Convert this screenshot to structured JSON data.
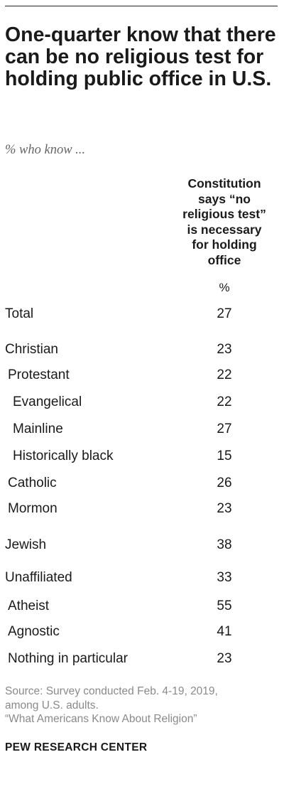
{
  "title": "One-quarter know that there can be no religious test for holding public office in U.S.",
  "subtitle": "% who know ...",
  "column_header": "Constitution\nsays “no\nreligious test”\nis necessary\nfor holding\noffice",
  "unit_label": "%",
  "source_lines": [
    "Source: Survey conducted Feb. 4-19, 2019,",
    "among U.S. adults.",
    "“What Americans Know About Religion”"
  ],
  "footer": "PEW RESEARCH CENTER",
  "chart_data": {
    "type": "table",
    "title": "One-quarter know that there can be no religious test for holding public office in U.S.",
    "subtitle": "% who know ...",
    "columns": [
      "Constitution says “no religious test” is necessary for holding office"
    ],
    "unit": "%",
    "rows": [
      {
        "label": "Total",
        "value": 27,
        "level": 0
      },
      {
        "label": "Christian",
        "value": 23,
        "level": 0
      },
      {
        "label": "Protestant",
        "value": 22,
        "level": 1
      },
      {
        "label": "Evangelical",
        "value": 22,
        "level": 2
      },
      {
        "label": "Mainline",
        "value": 27,
        "level": 2
      },
      {
        "label": "Historically black",
        "value": 15,
        "level": 2
      },
      {
        "label": "Catholic",
        "value": 26,
        "level": 1
      },
      {
        "label": "Mormon",
        "value": 23,
        "level": 1
      },
      {
        "label": "Jewish",
        "value": 38,
        "level": 0
      },
      {
        "label": "Unaffiliated",
        "value": 33,
        "level": 0
      },
      {
        "label": "Atheist",
        "value": 55,
        "level": 1
      },
      {
        "label": "Agnostic",
        "value": 41,
        "level": 1
      },
      {
        "label": "Nothing in particular",
        "value": 23,
        "level": 1
      }
    ]
  }
}
